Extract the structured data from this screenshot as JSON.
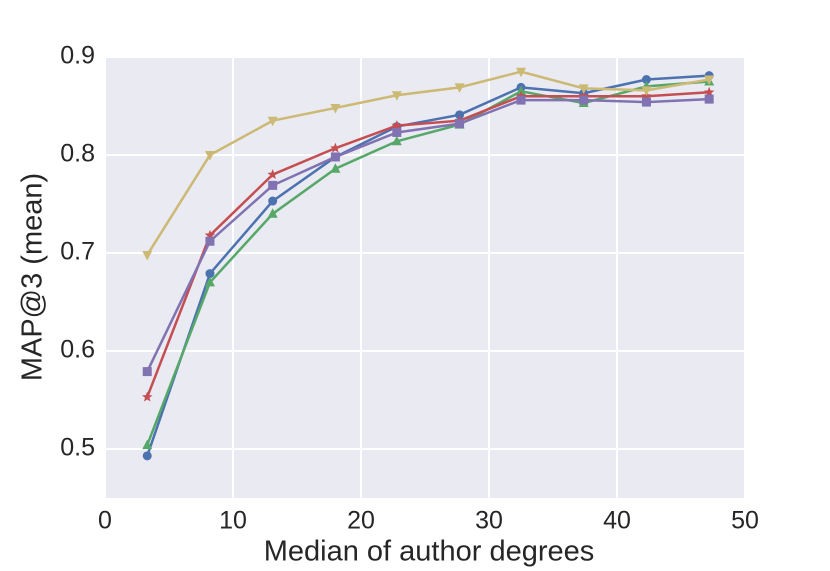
{
  "chart_data": {
    "type": "line",
    "x_label": "Median of author degrees",
    "y_label": "MAP@3 (mean)",
    "x": [
      3.3,
      8.2,
      13.1,
      18.0,
      22.8,
      27.7,
      32.5,
      37.4,
      42.3,
      47.2
    ],
    "series": [
      {
        "color": "#4c72b0",
        "marker": "circle",
        "values": [
          0.493,
          0.679,
          0.753,
          0.798,
          0.829,
          0.841,
          0.869,
          0.863,
          0.877,
          0.881
        ]
      },
      {
        "color": "#55a868",
        "marker": "triangle-up",
        "values": [
          0.504,
          0.67,
          0.74,
          0.786,
          0.814,
          0.831,
          0.865,
          0.853,
          0.87,
          0.875
        ]
      },
      {
        "color": "#c44e52",
        "marker": "star",
        "values": [
          0.553,
          0.718,
          0.78,
          0.807,
          0.83,
          0.835,
          0.86,
          0.86,
          0.86,
          0.864
        ]
      },
      {
        "color": "#8172b2",
        "marker": "square",
        "values": [
          0.579,
          0.712,
          0.769,
          0.798,
          0.823,
          0.832,
          0.856,
          0.856,
          0.854,
          0.857
        ]
      },
      {
        "color": "#ccb974",
        "marker": "triangle-down",
        "values": [
          0.698,
          0.8,
          0.835,
          0.848,
          0.861,
          0.869,
          0.885,
          0.868,
          0.866,
          0.877
        ]
      }
    ],
    "xlim": [
      0,
      50
    ],
    "xticks": [
      0,
      10,
      20,
      30,
      40,
      50
    ],
    "ylim": [
      0.45,
      0.9
    ],
    "yticks": [
      0.5,
      0.6,
      0.7,
      0.8,
      0.9
    ],
    "grid": true
  }
}
